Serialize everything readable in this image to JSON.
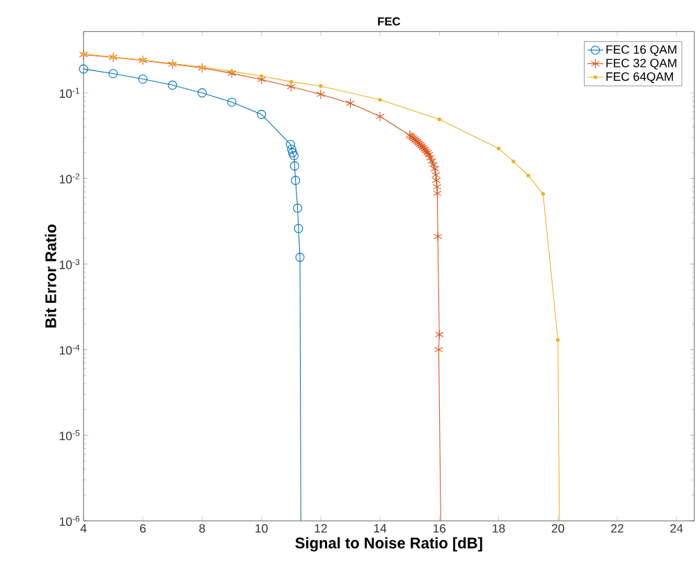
{
  "chart_data": {
    "type": "line",
    "title": "FEC",
    "xlabel": "Signal to Noise Ratio [dB]",
    "ylabel": "Bit Error Ratio",
    "xlim": [
      4,
      24.6
    ],
    "xticks": [
      4,
      6,
      8,
      10,
      12,
      14,
      16,
      18,
      20,
      22,
      24
    ],
    "ylim": [
      1e-06,
      0.52
    ],
    "yticks": [
      {
        "value": 1e-06,
        "label": "10$^{-6}$"
      },
      {
        "value": 1e-05,
        "label": "10$^{-5}$"
      },
      {
        "value": 0.0001,
        "label": "10$^{-4}$"
      },
      {
        "value": 0.001,
        "label": "10$^{-3}$"
      },
      {
        "value": 0.01,
        "label": "10$^{-2}$"
      },
      {
        "value": 0.1,
        "label": "10$^{-1}$"
      }
    ],
    "log": "y",
    "legend": "top right",
    "series": [
      {
        "name": "FEC 16 QAM",
        "color": "#0072bd",
        "marker": "circle",
        "x": [
          4,
          5,
          6,
          7,
          8,
          9,
          10,
          10.98,
          11.02,
          11.05,
          11.1,
          11.12,
          11.15,
          11.22,
          11.25,
          11.3,
          11.33
        ],
        "values": [
          0.19,
          0.168,
          0.145,
          0.123,
          0.1,
          0.078,
          0.056,
          0.025,
          0.022,
          0.02,
          0.0185,
          0.014,
          0.0095,
          0.0045,
          0.0026,
          0.0012,
          1e-06
        ]
      },
      {
        "name": "FEC 32 QAM",
        "color": "#d95319",
        "marker": "cross",
        "x": [
          4,
          5,
          6,
          7,
          8,
          9,
          10,
          11,
          12,
          13,
          14,
          15.0,
          15.05,
          15.1,
          15.15,
          15.2,
          15.25,
          15.3,
          15.35,
          15.4,
          15.45,
          15.5,
          15.55,
          15.6,
          15.65,
          15.7,
          15.75,
          15.8,
          15.85,
          15.88,
          15.9,
          15.92,
          15.93,
          15.95,
          16.0,
          15.98,
          16.05
        ],
        "values": [
          0.28,
          0.26,
          0.24,
          0.216,
          0.196,
          0.169,
          0.143,
          0.118,
          0.096,
          0.0755,
          0.053,
          0.032,
          0.031,
          0.03,
          0.029,
          0.028,
          0.027,
          0.026,
          0.025,
          0.024,
          0.023,
          0.022,
          0.021,
          0.02,
          0.019,
          0.0175,
          0.016,
          0.0145,
          0.013,
          0.011,
          0.0095,
          0.008,
          0.0067,
          0.0021,
          0.00015,
          0.0001,
          1e-06
        ]
      },
      {
        "name": "FEC 64QAM",
        "color": "#edb120",
        "marker": "point",
        "x": [
          4,
          5,
          6,
          7,
          8,
          9,
          10,
          11,
          12,
          14,
          16,
          18,
          18.5,
          19,
          19.5,
          20,
          20.05
        ],
        "values": [
          0.285,
          0.262,
          0.242,
          0.22,
          0.2,
          0.178,
          0.157,
          0.135,
          0.12,
          0.083,
          0.049,
          0.0224,
          0.0158,
          0.0108,
          0.0066,
          0.00013,
          1e-06
        ]
      }
    ]
  }
}
